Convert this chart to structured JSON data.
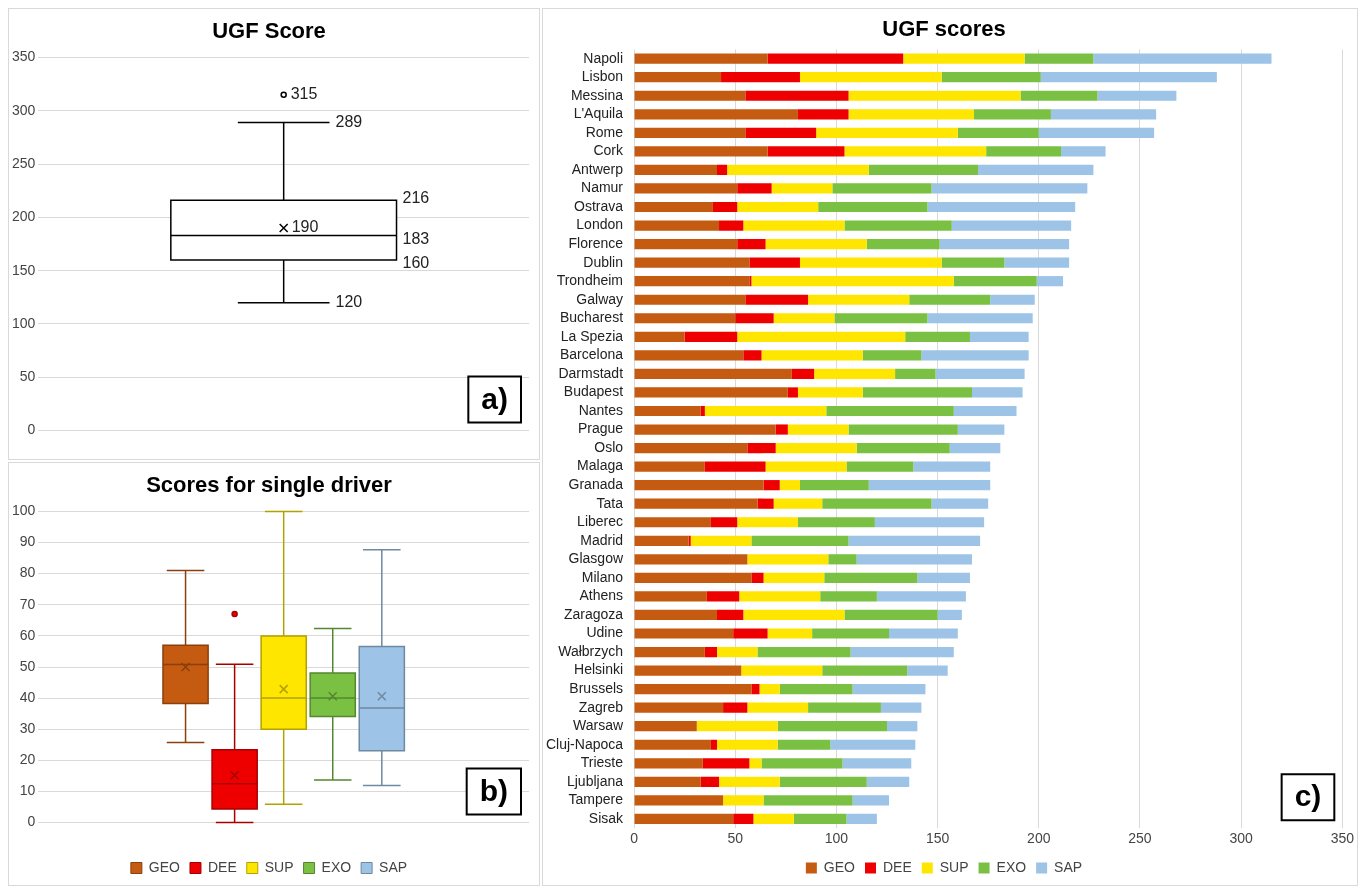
{
  "chart_data": [
    {
      "type": "box",
      "title": "UGF Score",
      "categories": [
        null
      ],
      "ylim": [
        0,
        350
      ],
      "yticks": [
        0,
        50,
        100,
        150,
        200,
        250,
        300,
        350
      ],
      "grid": "y",
      "data_labels": true,
      "annotations": [
        "315",
        "289",
        "216",
        "190",
        "183",
        "160",
        "120",
        "a)"
      ],
      "series": [
        {
          "color": "#ffffff",
          "boxes": [
            {
              "low": 120,
              "q1": 160,
              "median": 183,
              "q3": 216,
              "high": 289,
              "mean": 190,
              "outliers": [
                315
              ]
            }
          ]
        }
      ]
    },
    {
      "type": "box",
      "title": "Scores for single driver",
      "categories": [
        null
      ],
      "ylim": [
        0,
        100
      ],
      "yticks": [
        0,
        10,
        20,
        30,
        40,
        50,
        60,
        70,
        80,
        90,
        100
      ],
      "grid": "y",
      "legend": "bottom",
      "annotations": [
        "b)"
      ],
      "series": [
        {
          "name": "GEO",
          "color": "#c55a11",
          "boxes": [
            {
              "low": 25.7,
              "q1": 38.3,
              "median": 50.8,
              "q3": 57,
              "high": 81,
              "mean": 50
            }
          ]
        },
        {
          "name": "DEE",
          "color": "#ee0000",
          "boxes": [
            {
              "low": 0,
              "q1": 4.4,
              "median": 12.5,
              "q3": 23.4,
              "high": 50.9,
              "mean": 15.2,
              "outliers": [
                67
              ]
            }
          ]
        },
        {
          "name": "SUP",
          "color": "#ffe600",
          "boxes": [
            {
              "low": 5.9,
              "q1": 30,
              "median": 40,
              "q3": 60,
              "high": 100,
              "mean": 42.9
            }
          ]
        },
        {
          "name": "EXO",
          "color": "#7ac143",
          "boxes": [
            {
              "low": 13.7,
              "q1": 34.1,
              "median": 40,
              "q3": 48.1,
              "high": 62.4,
              "mean": 40.6
            }
          ]
        },
        {
          "name": "SAP",
          "color": "#9dc3e6",
          "boxes": [
            {
              "low": 11.9,
              "q1": 23.1,
              "median": 36.8,
              "q3": 56.6,
              "high": 87.7,
              "mean": 40.6
            }
          ]
        }
      ]
    },
    {
      "type": "bar",
      "title": "UGF scores",
      "orientation": "horizontal",
      "stacked": true,
      "xlim": [
        0,
        350
      ],
      "xticks": [
        0,
        50,
        100,
        150,
        200,
        250,
        300,
        350
      ],
      "grid": "x",
      "legend": "bottom",
      "annotations": [
        "c)"
      ],
      "categories": [
        "Napoli",
        "Lisbon",
        "Messina",
        "L'Aquila",
        "Rome",
        "Cork",
        "Antwerp",
        "Namur",
        "Ostrava",
        "London",
        "Florence",
        "Dublin",
        "Trondheim",
        "Galway",
        "Bucharest",
        "La Spezia",
        "Barcelona",
        "Darmstadt",
        "Budapest",
        "Nantes",
        "Prague",
        "Oslo",
        "Malaga",
        "Granada",
        "Tata",
        "Liberec",
        "Madrid",
        "Glasgow",
        "Milano",
        "Athens",
        "Zaragoza",
        "Udine",
        "Wałbrzych",
        "Helsinki",
        "Brussels",
        "Zagreb",
        "Warsaw",
        "Cluj-Napoca",
        "Trieste",
        "Ljubljana",
        "Tampere",
        "Sisak"
      ],
      "series": [
        {
          "name": "GEO",
          "color": "#c55a11",
          "values": [
            66,
            43,
            55,
            81,
            55,
            66,
            41,
            51,
            39,
            42,
            51,
            57,
            57,
            55,
            50,
            25,
            54,
            78,
            76,
            33,
            70,
            56,
            35,
            64,
            61,
            38,
            27,
            56,
            58,
            36,
            41,
            49,
            35,
            53,
            58,
            44,
            31,
            38,
            34,
            33,
            44,
            49
          ]
        },
        {
          "name": "DEE",
          "color": "#ee0000",
          "values": [
            67,
            39,
            51,
            25,
            35,
            38,
            5,
            17,
            12,
            12,
            14,
            25,
            1,
            31,
            19,
            26,
            9,
            11,
            5,
            2,
            6,
            14,
            30,
            8,
            8,
            13,
            1,
            0,
            6,
            16,
            13,
            17,
            6,
            0,
            4,
            12,
            0,
            3,
            23,
            9,
            0,
            10
          ]
        },
        {
          "name": "SUP",
          "color": "#ffe600",
          "values": [
            60,
            70,
            85,
            62,
            70,
            70,
            70,
            30,
            40,
            50,
            50,
            70,
            100,
            50,
            30,
            83,
            50,
            40,
            32,
            60,
            30,
            40,
            40,
            10,
            24,
            30,
            30,
            40,
            30,
            40,
            50,
            22,
            20,
            40,
            10,
            30,
            40,
            30,
            6,
            30,
            20,
            20
          ]
        },
        {
          "name": "EXO",
          "color": "#7ac143",
          "values": [
            34,
            49,
            38,
            38,
            40,
            37,
            54,
            49,
            54,
            53,
            36,
            31,
            41,
            40,
            46,
            32,
            29,
            20,
            54,
            63,
            54,
            46,
            33,
            34,
            54,
            38,
            48,
            14,
            46,
            28,
            46,
            38,
            46,
            42,
            36,
            36,
            54,
            26,
            40,
            43,
            44,
            26
          ]
        },
        {
          "name": "SAP",
          "color": "#9dc3e6",
          "values": [
            88,
            87,
            39,
            52,
            57,
            22,
            57,
            77,
            73,
            59,
            64,
            32,
            13,
            22,
            52,
            29,
            53,
            44,
            25,
            31,
            23,
            25,
            38,
            60,
            28,
            54,
            65,
            57,
            26,
            44,
            12,
            34,
            51,
            20,
            36,
            20,
            15,
            42,
            34,
            21,
            18,
            15
          ]
        }
      ]
    }
  ]
}
